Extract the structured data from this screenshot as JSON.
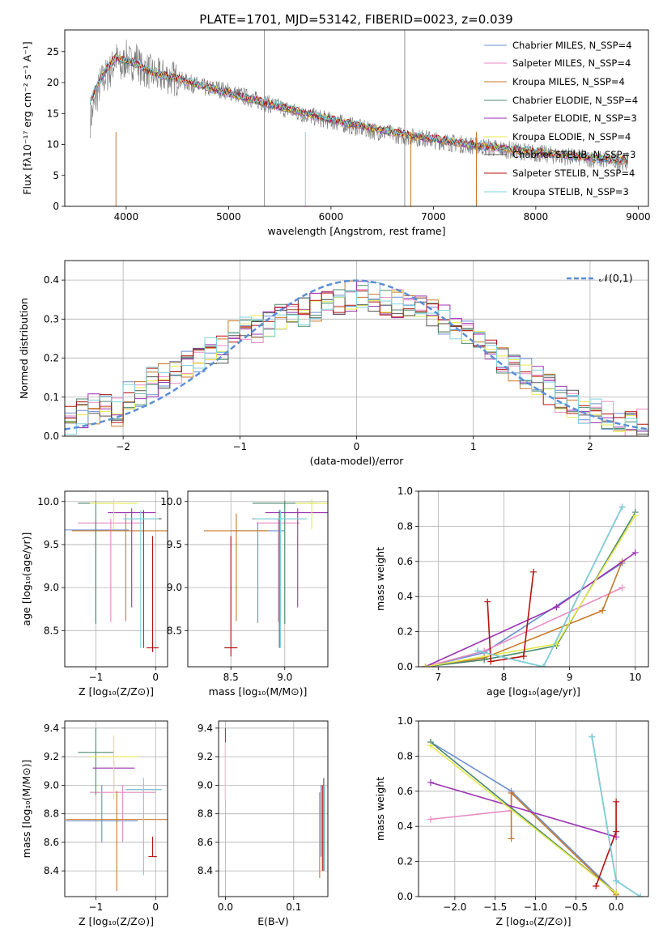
{
  "figure": {
    "title": "PLATE=1701, MJD=53142, FIBERID=0023, z=0.039"
  },
  "colors": [
    "#6a8fd0",
    "#e78ac3",
    "#c8782a",
    "#4c8a6e",
    "#9b31b2",
    "#e6e84a",
    "#555555",
    "#b3120e",
    "#7ed3df"
  ],
  "chart_data": [
    {
      "id": "spectrum",
      "type": "line",
      "xlabel": "wavelength [Angstrom, rest frame]",
      "ylabel": "Flux [fλ10⁻¹⁷ erg cm⁻² s⁻¹ A⁻¹]",
      "xlim": [
        3400,
        9100
      ],
      "ylim": [
        0,
        28.5
      ],
      "xticks": [
        4000,
        5000,
        6000,
        7000,
        8000,
        9000
      ],
      "yticks": [
        0,
        5,
        10,
        15,
        20,
        25
      ],
      "grid": false,
      "legend": "top-right",
      "observed": {
        "x": [
          3650,
          3700,
          3750,
          3800,
          3850,
          3900,
          3950,
          4000,
          4050,
          4100,
          4150,
          4200,
          4300,
          4400,
          4500,
          4600,
          4700,
          4800,
          4900,
          5000,
          5100,
          5200,
          5300,
          5400,
          5500,
          5600,
          5700,
          5800,
          5900,
          6000,
          6100,
          6200,
          6300,
          6400,
          6500,
          6600,
          6700,
          6800,
          6900,
          7000,
          7100,
          7200,
          7300,
          7400,
          7500,
          7600,
          7700,
          7800,
          7900,
          8000,
          8200,
          8400,
          8600,
          8800,
          8900
        ],
        "y": [
          14,
          17,
          20,
          21,
          22,
          24,
          22,
          24,
          23,
          24,
          22,
          22,
          21,
          21,
          20.5,
          20,
          19.5,
          19,
          19,
          18.5,
          18,
          17.5,
          17,
          16.5,
          16,
          15.5,
          15,
          14.6,
          14.2,
          13.8,
          13.4,
          13,
          12.6,
          12.2,
          12,
          11.7,
          11.4,
          11.2,
          11,
          10.7,
          10.5,
          10.2,
          10,
          9.8,
          9.6,
          9.4,
          9.2,
          9,
          8.8,
          8.6,
          8.2,
          7.9,
          7.6,
          7.3,
          7.2
        ]
      },
      "series": [
        {
          "name": "Chabrier MILES, N_SSP=4",
          "color": "#6a8fd0"
        },
        {
          "name": "Salpeter MILES, N_SSP=4",
          "color": "#e78ac3"
        },
        {
          "name": "Kroupa MILES, N_SSP=4",
          "color": "#c8782a"
        },
        {
          "name": "Chabrier ELODIE, N_SSP=4",
          "color": "#4c8a6e"
        },
        {
          "name": "Salpeter ELODIE, N_SSP=3",
          "color": "#9b31b2"
        },
        {
          "name": "Kroupa ELODIE, N_SSP=4",
          "color": "#e6e84a"
        },
        {
          "name": "Chabrier STELIB, N_SSP=3",
          "color": "#555555"
        },
        {
          "name": "Salpeter STELIB, N_SSP=4",
          "color": "#b3120e"
        },
        {
          "name": "Kroupa STELIB, N_SSP=3",
          "color": "#7ed3df"
        }
      ],
      "model": {
        "x": [
          3650,
          3700,
          3800,
          3900,
          4000,
          4100,
          4200,
          4300,
          4400,
          4600,
          4800,
          5000,
          5200,
          5400,
          5600,
          5800,
          6000,
          6200,
          6400,
          6600,
          6800,
          7000,
          7200,
          7400,
          7600,
          7800,
          8000,
          8200,
          8400,
          8600,
          8800,
          8900
        ],
        "y": [
          17,
          19,
          22,
          24,
          23.5,
          23,
          22,
          21.5,
          21,
          20.2,
          19.2,
          18.3,
          17.4,
          16.5,
          15.7,
          14.8,
          14,
          13.3,
          12.6,
          12,
          11.4,
          10.9,
          10.4,
          9.9,
          9.5,
          9.1,
          8.8,
          8.4,
          8.1,
          7.8,
          7.5,
          7.4
        ]
      }
    },
    {
      "id": "residuals",
      "type": "line",
      "xlabel": "(data-model)/error",
      "ylabel": "Normed distribution",
      "xlim": [
        -2.5,
        2.5
      ],
      "ylim": [
        0,
        0.45
      ],
      "xticks": [
        -2,
        -1,
        0,
        1,
        2
      ],
      "yticks": [
        0.0,
        0.1,
        0.2,
        0.3,
        0.4
      ],
      "grid": true,
      "legend": "top-right",
      "reference": {
        "name": "𝒩(0,1)",
        "color": "#5b8ed6",
        "mu": 0,
        "sigma": 1
      },
      "bins": [
        -2.5,
        2.5,
        50
      ],
      "hist": [
        0.04,
        0.06,
        0.07,
        0.08,
        0.06,
        0.1,
        0.11,
        0.14,
        0.15,
        0.17,
        0.18,
        0.2,
        0.22,
        0.22,
        0.26,
        0.27,
        0.27,
        0.29,
        0.3,
        0.31,
        0.32,
        0.33,
        0.34,
        0.35,
        0.36,
        0.37,
        0.36,
        0.35,
        0.34,
        0.34,
        0.33,
        0.32,
        0.3,
        0.28,
        0.27,
        0.24,
        0.22,
        0.2,
        0.18,
        0.16,
        0.14,
        0.12,
        0.1,
        0.08,
        0.07,
        0.06,
        0.05,
        0.04,
        0.03,
        0.03
      ],
      "legend_entries": [
        "𝒩(0,1)"
      ]
    },
    {
      "id": "age_vs_z",
      "type": "scatter",
      "xlabel": "Z [log₁₀(Z/Z⊙)]",
      "ylabel": "age  [log₁₀(age/yr)]",
      "xlim": [
        -1.52,
        0.2
      ],
      "ylim": [
        8.08,
        10.12
      ],
      "xticks": [
        -1,
        0
      ],
      "yticks": [
        8.5,
        9.0,
        9.5,
        10.0
      ],
      "grid": true,
      "points": [
        {
          "x": -1.0,
          "y": 9.67,
          "xerr": 0.55,
          "yerr": [
            1.07,
            0.1
          ],
          "c": 0
        },
        {
          "x": -0.75,
          "y": 9.75,
          "xerr": 0.55,
          "yerr": [
            1.15,
            0.05
          ],
          "c": 1
        },
        {
          "x": -0.5,
          "y": 9.66,
          "xerr": 0.9,
          "yerr": [
            1.05,
            0.2
          ],
          "c": 2
        },
        {
          "x": -1.0,
          "y": 9.98,
          "xerr": 0.3,
          "yerr": [
            1.4,
            0.03
          ],
          "c": 3
        },
        {
          "x": -0.4,
          "y": 9.87,
          "xerr": 0.4,
          "yerr": [
            1.1,
            0.05
          ],
          "c": 4
        },
        {
          "x": -0.7,
          "y": 9.98,
          "xerr": 0.4,
          "yerr": [
            0.3,
            0.05
          ],
          "c": 5
        },
        {
          "x": -0.2,
          "y": 9.8,
          "xerr": 0.3,
          "yerr": [
            1.5,
            0.1
          ],
          "c": 6
        },
        {
          "x": -0.05,
          "y": 8.3,
          "xerr": 0.1,
          "yerr": [
            0.05,
            1.3
          ],
          "c": 7
        },
        {
          "x": -0.25,
          "y": 9.8,
          "xerr": 0.3,
          "yerr": [
            1.5,
            0.1
          ],
          "c": 8
        }
      ]
    },
    {
      "id": "age_vs_mass",
      "type": "scatter",
      "xlabel": "mass [log₁₀(M/M⊙)]",
      "ylabel": "",
      "xlim": [
        8.1,
        9.4
      ],
      "ylim": [
        8.08,
        10.12
      ],
      "xticks": [
        8.5,
        9.0
      ],
      "yticks": [
        8.5,
        9.0,
        9.5,
        10.0
      ],
      "grid": true,
      "points": [
        {
          "x": 8.75,
          "y": 9.66,
          "xerr": 0.25,
          "yerr": [
            1.07,
            0.1
          ],
          "c": 0
        },
        {
          "x": 8.94,
          "y": 9.75,
          "xerr": 0.2,
          "yerr": [
            1.15,
            0.05
          ],
          "c": 1
        },
        {
          "x": 8.55,
          "y": 9.66,
          "xerr": 0.3,
          "yerr": [
            1.05,
            0.2
          ],
          "c": 2
        },
        {
          "x": 9.0,
          "y": 9.98,
          "xerr": 0.3,
          "yerr": [
            1.4,
            0.03
          ],
          "c": 3
        },
        {
          "x": 9.12,
          "y": 9.87,
          "xerr": 0.3,
          "yerr": [
            1.1,
            0.05
          ],
          "c": 4
        },
        {
          "x": 9.25,
          "y": 9.98,
          "xerr": 0.15,
          "yerr": [
            0.3,
            0.05
          ],
          "c": 5
        },
        {
          "x": 8.95,
          "y": 9.8,
          "xerr": 0.25,
          "yerr": [
            1.5,
            0.1
          ],
          "c": 6
        },
        {
          "x": 8.5,
          "y": 8.3,
          "xerr": 0.06,
          "yerr": [
            0.1,
            1.3
          ],
          "c": 7
        },
        {
          "x": 8.96,
          "y": 9.8,
          "xerr": 0.25,
          "yerr": [
            1.5,
            0.1
          ],
          "c": 8
        }
      ]
    },
    {
      "id": "weight_vs_age",
      "type": "line",
      "xlabel": "age  [log₁₀(age/yr)]",
      "ylabel": "mass weight",
      "xlim": [
        6.7,
        10.2
      ],
      "ylim": [
        0,
        1.0
      ],
      "xticks": [
        7,
        8,
        9,
        10
      ],
      "yticks": [
        0.0,
        0.2,
        0.4,
        0.6,
        0.8,
        1.0
      ],
      "grid": true,
      "series": [
        {
          "c": 0,
          "x": [
            6.8,
            7.7,
            9.8
          ],
          "y": [
            0.0,
            0.08,
            0.59
          ]
        },
        {
          "c": 1,
          "x": [
            6.8,
            7.7,
            9.8
          ],
          "y": [
            0.0,
            0.09,
            0.45
          ]
        },
        {
          "c": 2,
          "x": [
            6.8,
            7.7,
            9.5,
            9.8
          ],
          "y": [
            0.0,
            0.05,
            0.32,
            0.6
          ]
        },
        {
          "c": 3,
          "x": [
            6.8,
            7.7,
            8.8,
            10.0
          ],
          "y": [
            0.0,
            0.04,
            0.12,
            0.88
          ]
        },
        {
          "c": 4,
          "x": [
            6.8,
            8.8,
            10.0
          ],
          "y": [
            0.0,
            0.34,
            0.65
          ]
        },
        {
          "c": 5,
          "x": [
            6.8,
            8.8,
            10.0
          ],
          "y": [
            0.0,
            0.13,
            0.86
          ]
        },
        {
          "c": 6,
          "x": [
            7.6,
            8.6,
            9.8
          ],
          "y": [
            0.09,
            0.0,
            0.91
          ]
        },
        {
          "c": 7,
          "x": [
            7.75,
            7.8,
            8.3,
            8.45
          ],
          "y": [
            0.37,
            0.03,
            0.06,
            0.54
          ]
        },
        {
          "c": 8,
          "x": [
            7.6,
            8.6,
            9.8
          ],
          "y": [
            0.09,
            0.0,
            0.91
          ]
        }
      ]
    },
    {
      "id": "mass_vs_z",
      "type": "scatter",
      "xlabel": "Z [log₁₀(Z/Z⊙)]",
      "ylabel": "mass [log₁₀(M/M⊙)]",
      "xlim": [
        -1.52,
        0.2
      ],
      "ylim": [
        8.22,
        9.45
      ],
      "xticks": [
        -1,
        0
      ],
      "yticks": [
        8.4,
        8.6,
        8.8,
        9.0,
        9.2,
        9.4
      ],
      "grid": true,
      "points": [
        {
          "x": -0.9,
          "y": 8.75,
          "xerr": 0.6,
          "yerr": [
            0.15,
            0.25
          ],
          "c": 0
        },
        {
          "x": -0.55,
          "y": 8.95,
          "xerr": 0.55,
          "yerr": [
            0.35,
            0.05
          ],
          "c": 1
        },
        {
          "x": -0.65,
          "y": 8.76,
          "xerr": 0.85,
          "yerr": [
            0.5,
            0.2
          ],
          "c": 2
        },
        {
          "x": -1.0,
          "y": 9.23,
          "xerr": 0.3,
          "yerr": [
            0.3,
            0.17
          ],
          "c": 3
        },
        {
          "x": -0.7,
          "y": 9.12,
          "xerr": 0.35,
          "yerr": [
            0.15,
            0.05
          ],
          "c": 4
        },
        {
          "x": -0.7,
          "y": 9.2,
          "xerr": 0.4,
          "yerr": [
            0.3,
            0.15
          ],
          "c": 5
        },
        {
          "x": -0.2,
          "y": 8.97,
          "xerr": 0.3,
          "yerr": [
            0.6,
            0.08
          ],
          "c": 6
        },
        {
          "x": -0.05,
          "y": 8.5,
          "xerr": 0.07,
          "yerr": [
            0.0,
            0.14
          ],
          "c": 7
        },
        {
          "x": -0.2,
          "y": 8.97,
          "xerr": 0.3,
          "yerr": [
            0.6,
            0.08
          ],
          "c": 8
        }
      ]
    },
    {
      "id": "mass_vs_ebv",
      "type": "scatter",
      "xlabel": "E(B-V)",
      "ylabel": "",
      "xlim": [
        -0.01,
        0.15
      ],
      "ylim": [
        8.22,
        9.45
      ],
      "xticks": [
        0.0,
        0.1
      ],
      "yticks": [
        8.4,
        8.6,
        8.8,
        9.0,
        9.2,
        9.4
      ],
      "grid": true,
      "points": [
        {
          "x": 0.0,
          "y": 9.2,
          "yerr": [
            0.3,
            0.2
          ],
          "c": 4
        },
        {
          "x": 0.0,
          "y": 9.1,
          "yerr": [
            0.2,
            0.2
          ],
          "c": 5
        },
        {
          "x": 0.138,
          "y": 8.65,
          "yerr": [
            0.3,
            0.3
          ],
          "c": 2
        },
        {
          "x": 0.14,
          "y": 8.8,
          "yerr": [
            0.3,
            0.2
          ],
          "c": 0
        },
        {
          "x": 0.142,
          "y": 8.7,
          "yerr": [
            0.3,
            0.3
          ],
          "c": 7
        },
        {
          "x": 0.144,
          "y": 8.8,
          "yerr": [
            0.4,
            0.25
          ],
          "c": 6
        },
        {
          "x": 0.145,
          "y": 8.7,
          "yerr": [
            0.3,
            0.3
          ],
          "c": 8
        }
      ]
    },
    {
      "id": "weight_vs_z",
      "type": "line",
      "xlabel": "Z [log₁₀(Z/Z⊙)]",
      "ylabel": "mass weight",
      "xlim": [
        -2.45,
        0.4
      ],
      "ylim": [
        0,
        1.0
      ],
      "xticks": [
        -2.0,
        -1.5,
        -1.0,
        -0.5,
        0.0
      ],
      "yticks": [
        0.0,
        0.2,
        0.4,
        0.6,
        0.8,
        1.0
      ],
      "grid": true,
      "series": [
        {
          "c": 0,
          "x": [
            -2.3,
            -1.3,
            0.0
          ],
          "y": [
            0.88,
            0.6,
            0.02
          ]
        },
        {
          "c": 1,
          "x": [
            -2.3,
            -1.3,
            -1.3
          ],
          "y": [
            0.44,
            0.49,
            0.59
          ]
        },
        {
          "c": 2,
          "x": [
            -1.3,
            -1.3,
            0.0
          ],
          "y": [
            0.33,
            0.59,
            0.01
          ]
        },
        {
          "c": 3,
          "x": [
            -2.3,
            0.0
          ],
          "y": [
            0.88,
            0.02
          ]
        },
        {
          "c": 4,
          "x": [
            -2.3,
            0.0
          ],
          "y": [
            0.65,
            0.34
          ]
        },
        {
          "c": 5,
          "x": [
            -2.3,
            0.0
          ],
          "y": [
            0.86,
            0.02
          ]
        },
        {
          "c": 6,
          "x": [
            -0.3,
            0.0,
            0.3
          ],
          "y": [
            0.91,
            0.09,
            0.0
          ]
        },
        {
          "c": 7,
          "x": [
            -0.25,
            0.0,
            0.0
          ],
          "y": [
            0.06,
            0.37,
            0.54
          ]
        },
        {
          "c": 8,
          "x": [
            -0.3,
            0.0,
            0.3
          ],
          "y": [
            0.91,
            0.09,
            0.0
          ]
        }
      ]
    }
  ]
}
